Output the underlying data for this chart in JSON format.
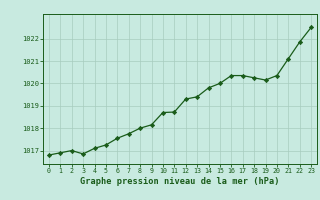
{
  "x": [
    0,
    1,
    2,
    3,
    4,
    5,
    6,
    7,
    8,
    9,
    10,
    11,
    12,
    13,
    14,
    15,
    16,
    17,
    18,
    19,
    20,
    21,
    22,
    23
  ],
  "y": [
    1016.8,
    1016.9,
    1017.0,
    1016.85,
    1017.1,
    1017.25,
    1017.55,
    1017.75,
    1018.0,
    1018.15,
    1018.7,
    1018.72,
    1019.3,
    1019.4,
    1019.8,
    1020.0,
    1020.35,
    1020.35,
    1020.25,
    1020.15,
    1020.35,
    1021.1,
    1021.85,
    1022.5
  ],
  "line_color": "#1a5c1a",
  "marker_color": "#1a5c1a",
  "bg_color": "#c8eae0",
  "grid_color": "#a8ccbe",
  "xlabel": "Graphe pression niveau de la mer (hPa)",
  "xlabel_color": "#1a5c1a",
  "tick_color": "#1a5c1a",
  "ylim_min": 1016.4,
  "ylim_max": 1023.1,
  "yticks": [
    1017,
    1018,
    1019,
    1020,
    1021,
    1022
  ]
}
